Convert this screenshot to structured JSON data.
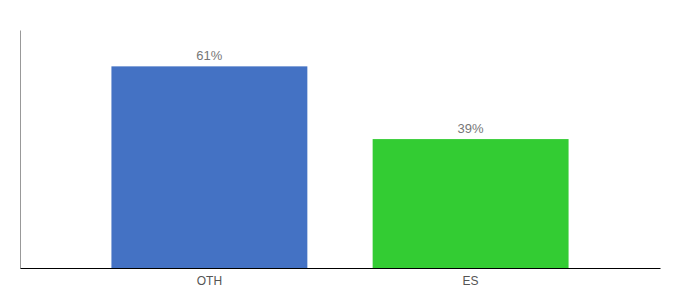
{
  "chart_data": {
    "type": "bar",
    "categories": [
      "OTH",
      "ES"
    ],
    "values": [
      61,
      39
    ],
    "value_labels": [
      "61%",
      "39%"
    ],
    "colors": [
      "#4472C4",
      "#33CC33"
    ],
    "ylim": [
      0,
      72
    ],
    "data_labels": true,
    "tick_labels": "x",
    "grid": false
  }
}
